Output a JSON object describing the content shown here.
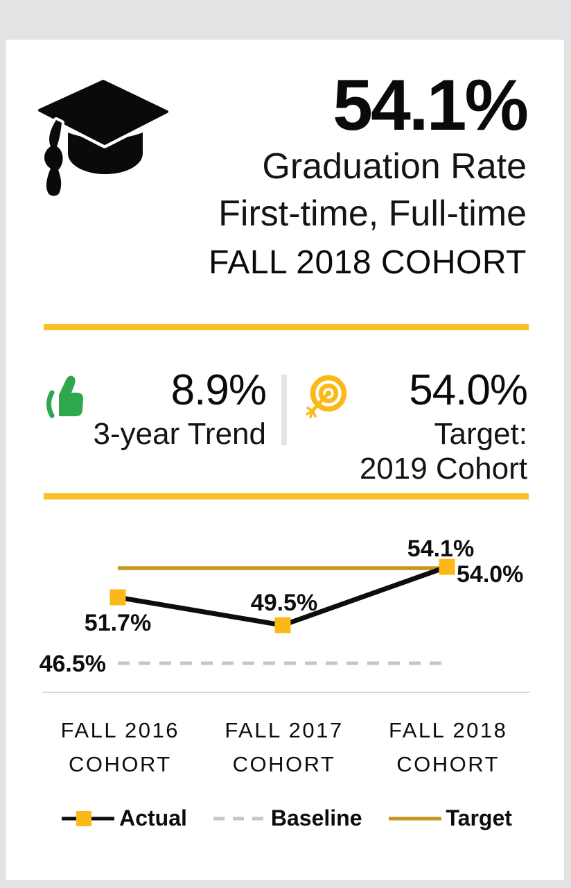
{
  "colors": {
    "accent_yellow": "#FCBF26",
    "marker_yellow": "#FBB917",
    "target_gold": "#C9961F",
    "trend_green": "#2EA74D",
    "baseline_gray": "#C6C6C6",
    "axis_gray": "#D9D9D9",
    "page_background": "#E2E3E5",
    "card_background": "#FFFFFF",
    "text": "#0D0D0D"
  },
  "icons": {
    "header": "graduation-cap-icon",
    "trend": "thumbs-up-icon",
    "target": "target-bullseye-icon"
  },
  "header": {
    "value": "54.1%",
    "metric_line1": "Graduation Rate",
    "metric_line2": "First-time, Full-time",
    "cohort": "FALL 2018 COHORT"
  },
  "kpis": {
    "trend": {
      "value": "8.9%",
      "label": "3-year Trend"
    },
    "target": {
      "value": "54.0%",
      "label_line1": "Target:",
      "label_line2": "2019 Cohort"
    }
  },
  "chart_data": {
    "type": "line",
    "title": "",
    "xlabel": "",
    "ylabel": "",
    "categories": [
      "FALL 2016 COHORT",
      "FALL 2017 COHORT",
      "FALL 2018 COHORT"
    ],
    "category_lines": [
      [
        "FALL 2016",
        "COHORT"
      ],
      [
        "FALL 2017",
        "COHORT"
      ],
      [
        "FALL 2018",
        "COHORT"
      ]
    ],
    "series": [
      {
        "name": "Actual",
        "style": "solid-with-square-markers",
        "color": "#0D0D0D",
        "marker_color": "#FBB917",
        "values": [
          51.7,
          49.5,
          54.1
        ]
      },
      {
        "name": "Baseline",
        "style": "dashed",
        "color": "#C6C6C6",
        "values": [
          46.5,
          46.5,
          46.5
        ]
      },
      {
        "name": "Target",
        "style": "solid",
        "color": "#C9961F",
        "values": [
          54.0,
          54.0,
          54.0
        ]
      }
    ],
    "data_labels": [
      "51.7%",
      "49.5%",
      "54.1%"
    ],
    "baseline_label": "46.5%",
    "target_label": "54.0%",
    "ylim": [
      45,
      56
    ],
    "grid": false,
    "legend_position": "bottom"
  }
}
